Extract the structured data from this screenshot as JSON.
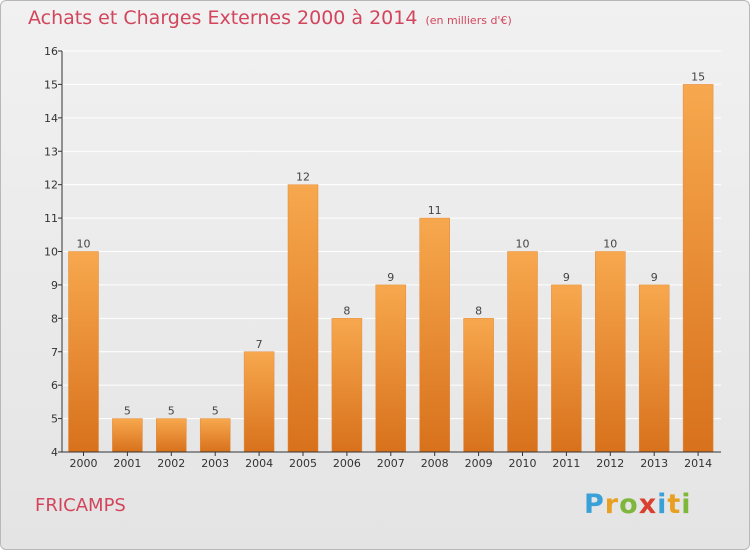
{
  "header": {
    "title": "Achats et Charges Externes 2000 à 2014",
    "unit": "(en milliers d'€)"
  },
  "footer": {
    "city": "FRICAMPS",
    "brand": "Proxiti"
  },
  "colors": {
    "title": "#d2455c",
    "bar_light": "#f7a84e",
    "bar_dark": "#d8711c",
    "axis": "#333333",
    "grid": "#ffffff"
  },
  "chart_data": {
    "type": "bar",
    "title": "Achats et Charges Externes 2000 à 2014",
    "subtitle": "(en milliers d'€)",
    "categories": [
      "2000",
      "2001",
      "2002",
      "2003",
      "2004",
      "2005",
      "2006",
      "2007",
      "2008",
      "2009",
      "2010",
      "2011",
      "2012",
      "2013",
      "2014"
    ],
    "values": [
      10,
      5,
      5,
      5,
      7,
      12,
      8,
      9,
      11,
      8,
      10,
      9,
      10,
      9,
      15
    ],
    "ylim": [
      4,
      16
    ],
    "yticks": [
      4,
      5,
      6,
      7,
      8,
      9,
      10,
      11,
      12,
      13,
      14,
      15,
      16
    ],
    "grid": true,
    "legend": "none",
    "data_labels": true
  }
}
